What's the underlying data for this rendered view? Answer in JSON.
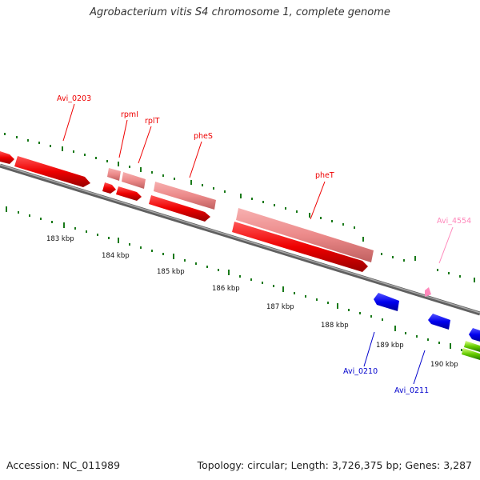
{
  "title": "Agrobacterium vitis S4 chromosome 1, complete genome",
  "footer": {
    "accession": "Accession: NC_011989",
    "summary": "Topology: circular; Length: 3,726,375 bp; Genes: 3,287"
  },
  "colors": {
    "forward_gene": "#ff0000",
    "rrna_like": "#ee8888",
    "reverse_gene": "#0000ff",
    "pink_gene": "#ff88bb",
    "green_gene": "#66cc00",
    "backbone": "#808080",
    "ticks": "#1a7a1a"
  },
  "kbp_labels": [
    "183 kbp",
    "184 kbp",
    "185 kbp",
    "186 kbp",
    "187 kbp",
    "188 kbp",
    "189 kbp",
    "190 kbp"
  ],
  "gene_labels": {
    "avi0203": "Avi_0203",
    "rpmI": "rpmI",
    "rplT": "rplT",
    "pheS": "pheS",
    "pheT": "pheT",
    "avi4554": "Avi_4554",
    "avi0210": "Avi_0210",
    "avi0211": "Avi_0211"
  },
  "icons": {
    "backbone": "chromosome-backbone-line",
    "genes": "gene-arrow-shapes"
  }
}
